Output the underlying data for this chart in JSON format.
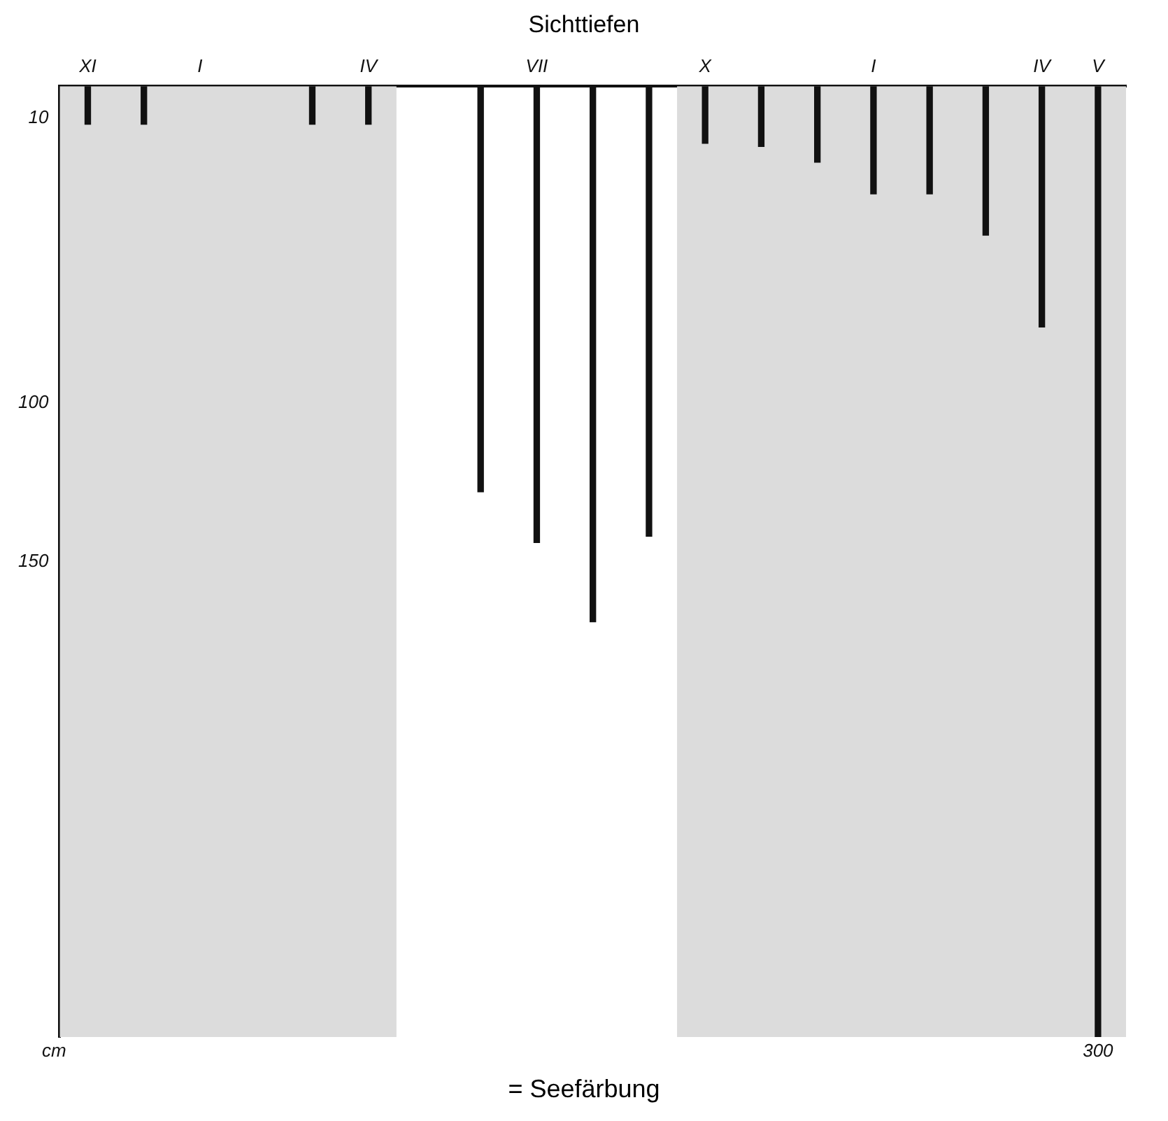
{
  "chart_data": {
    "type": "bar",
    "title": "Sichttiefen",
    "ylabel": "cm",
    "categories": [
      "XI",
      null,
      "I",
      null,
      null,
      "IV",
      null,
      null,
      "VII",
      null,
      null,
      "X",
      null,
      null,
      "I",
      null,
      null,
      "IV",
      "V"
    ],
    "values": [
      12,
      12,
      null,
      null,
      12,
      12,
      null,
      128,
      144,
      169,
      142,
      18,
      19,
      24,
      34,
      34,
      47,
      76,
      300
    ],
    "value_labels": [
      null,
      null,
      null,
      null,
      null,
      null,
      null,
      null,
      null,
      null,
      null,
      null,
      null,
      null,
      null,
      null,
      null,
      null,
      "300"
    ],
    "color": "#111111",
    "ylim": [
      300,
      0
    ],
    "yticks": [
      10,
      100,
      150
    ],
    "annotations": [
      "= Seefärbung"
    ],
    "bands": [
      {
        "axis": "x",
        "from": "XI",
        "to": "IV",
        "color": "#dcdcdc"
      },
      {
        "axis": "x",
        "from": "X",
        "to": "V",
        "color": "#dcdcdc"
      }
    ],
    "grid": false
  }
}
